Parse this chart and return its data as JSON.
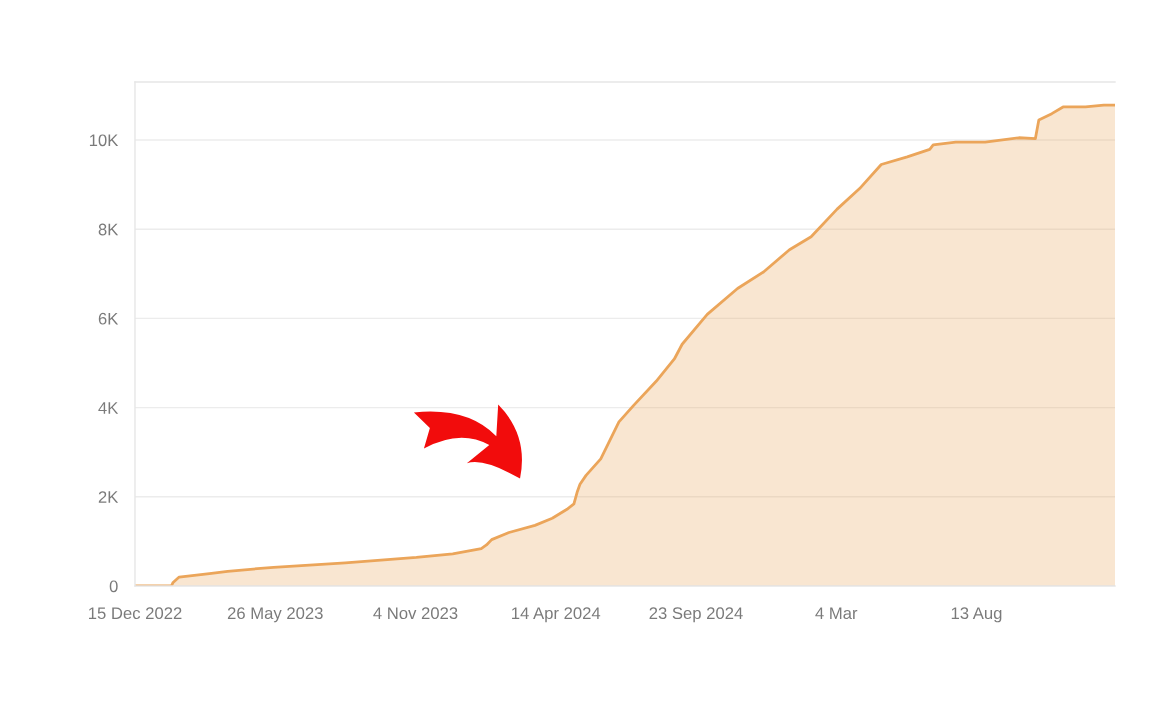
{
  "chart_data": {
    "type": "area",
    "x": [
      "2022-12-15",
      "2023-01-26",
      "2023-01-28",
      "2023-02-04",
      "2023-03-11",
      "2023-04-01",
      "2023-05-24",
      "2023-08-15",
      "2023-11-05",
      "2023-12-17",
      "2024-01-19",
      "2024-01-25",
      "2024-01-31",
      "2024-02-20",
      "2024-03-21",
      "2024-04-10",
      "2024-04-27",
      "2024-05-05",
      "2024-05-09",
      "2024-05-12",
      "2024-05-19",
      "2024-06-05",
      "2024-06-26",
      "2024-07-13",
      "2024-08-08",
      "2024-08-29",
      "2024-09-07",
      "2024-10-06",
      "2024-11-10",
      "2024-12-10",
      "2025-01-09",
      "2025-02-03",
      "2025-03-05",
      "2025-03-31",
      "2025-04-25",
      "2025-05-25",
      "2025-06-20",
      "2025-06-24",
      "2025-07-20",
      "2025-08-23",
      "2025-10-01",
      "2025-10-20",
      "2025-10-24",
      "2025-11-08",
      "2025-11-21",
      "2025-12-17",
      "2026-01-07",
      "2026-01-20"
    ],
    "series": [
      {
        "color": "#eba55a",
        "values": [
          0,
          0,
          80,
          200,
          280,
          330,
          420,
          520,
          640,
          720,
          840,
          920,
          1040,
          1200,
          1360,
          1520,
          1720,
          1840,
          2120,
          2280,
          2480,
          2850,
          3680,
          4050,
          4590,
          5090,
          5420,
          6090,
          6670,
          7040,
          7540,
          7830,
          8450,
          8910,
          9450,
          9620,
          9790,
          9890,
          9950,
          9950,
          10050,
          10030,
          10450,
          10590,
          10740,
          10740,
          10780,
          10780
        ]
      }
    ],
    "xlim": [
      "2022-12-15",
      "2026-01-20"
    ],
    "xticks": [
      {
        "value": "2022-12-15",
        "label": "15 Dec 2022"
      },
      {
        "value": "2023-05-26",
        "label": "26 May 2023"
      },
      {
        "value": "2023-11-04",
        "label": "4 Nov 2023"
      },
      {
        "value": "2024-04-14",
        "label": "14 Apr 2024"
      },
      {
        "value": "2024-09-23",
        "label": "23 Sep 2024"
      },
      {
        "value": "2025-03-04",
        "label": "4 Mar"
      },
      {
        "value": "2025-08-13",
        "label": "13 Aug"
      }
    ],
    "ylim": [
      0,
      11300
    ],
    "yticks": [
      0,
      {
        "value": 2000,
        "label": "2K"
      },
      {
        "value": 4000,
        "label": "4K"
      },
      {
        "value": 6000,
        "label": "6K"
      },
      {
        "value": 8000,
        "label": "8K"
      },
      {
        "value": 10000,
        "label": "10K"
      }
    ],
    "grid": "y"
  }
}
